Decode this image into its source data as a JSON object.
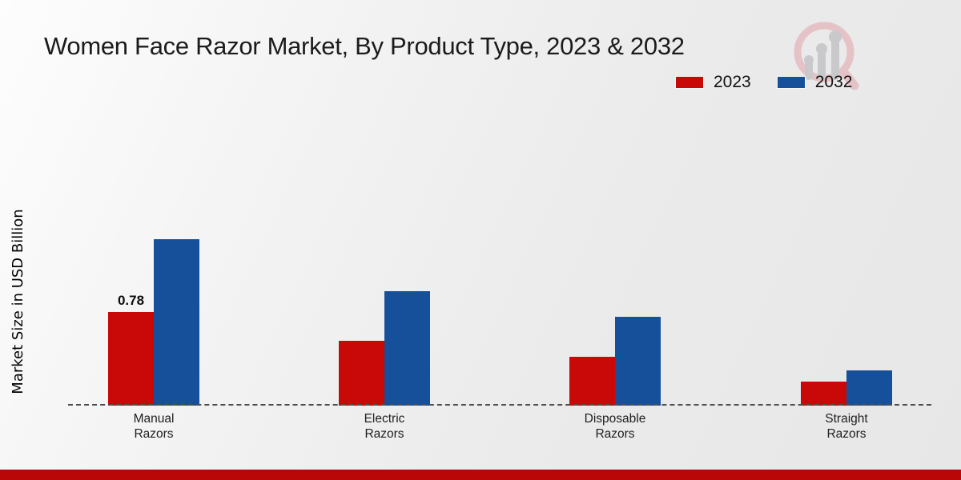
{
  "page": {
    "accent_red": "#c90808",
    "accent_blue": "#164f9a",
    "bottom_bar_color": "#b90707",
    "logo_icon": "magnifier-bar-chart-logo"
  },
  "chart_data": {
    "type": "bar",
    "title": "Women Face Razor Market, By Product Type, 2023 & 2032",
    "ylabel": "Market Size in USD Billion",
    "xlabel": "",
    "categories": [
      "Manual Razors",
      "Electric Razors",
      "Disposable Razors",
      "Straight Razors"
    ],
    "series": [
      {
        "name": "2023",
        "color": "#c90808",
        "values": [
          0.78,
          0.54,
          0.41,
          0.2
        ]
      },
      {
        "name": "2032",
        "color": "#164f9a",
        "values": [
          1.39,
          0.95,
          0.74,
          0.29
        ]
      }
    ],
    "bar_labels": [
      {
        "series": "2023",
        "category": "Manual Razors",
        "text": "0.78"
      }
    ],
    "legend_position": "top-right",
    "grid": false,
    "axis_ticks_visible": false,
    "baseline_style": "dashed"
  }
}
